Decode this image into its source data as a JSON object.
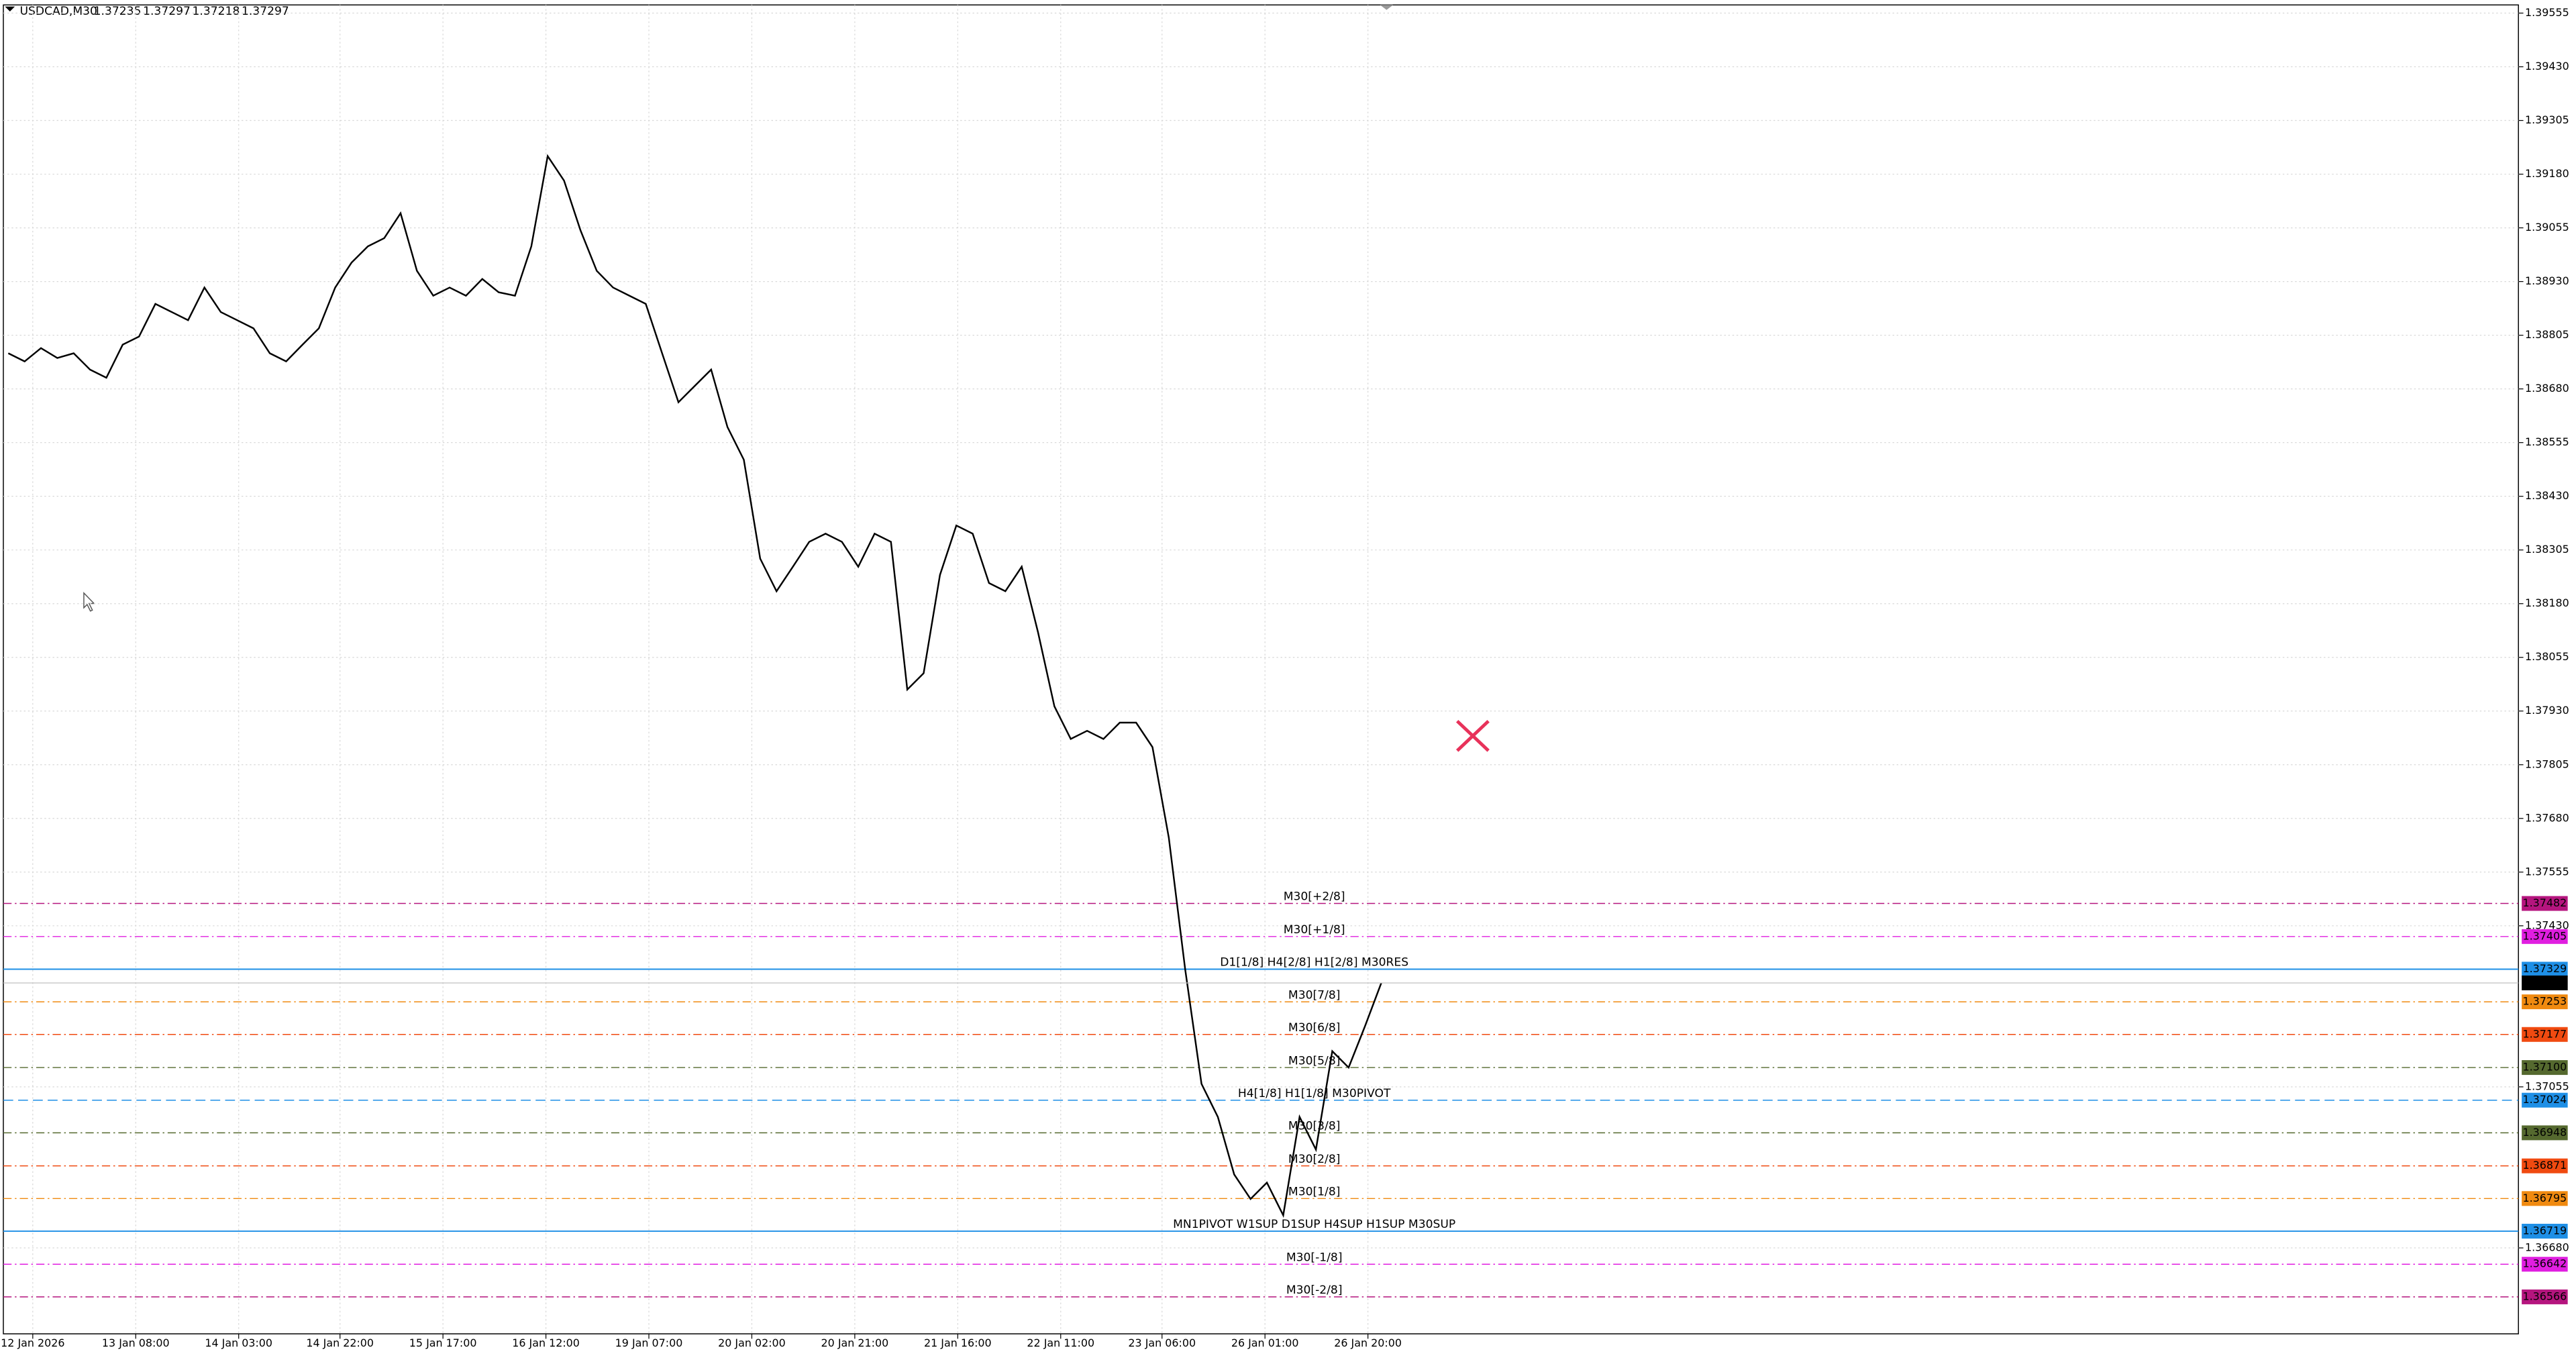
{
  "chart_data": {
    "type": "line",
    "title": "USDCAD,M30",
    "quote": [
      1.37235,
      1.37297,
      1.37218,
      1.37297
    ],
    "color": "#000000",
    "values": [
      1.38763,
      1.38744,
      1.38775,
      1.38752,
      1.38763,
      1.38725,
      1.38706,
      1.38783,
      1.38802,
      1.38878,
      1.38859,
      1.3884,
      1.38916,
      1.38859,
      1.3884,
      1.38821,
      1.38763,
      1.38744,
      1.38783,
      1.38821,
      1.38916,
      1.38974,
      1.39012,
      1.39031,
      1.39089,
      1.38955,
      1.38897,
      1.38916,
      1.38897,
      1.38936,
      1.38905,
      1.38897,
      1.39012,
      1.39222,
      1.39165,
      1.3905,
      1.38955,
      1.38916,
      1.38897,
      1.38878,
      1.38763,
      1.38649,
      1.38687,
      1.38725,
      1.38591,
      1.38515,
      1.38285,
      1.38209,
      1.38266,
      1.38324,
      1.38343,
      1.38324,
      1.38266,
      1.38343,
      1.38324,
      1.3798,
      1.38018,
      1.38247,
      1.38362,
      1.38343,
      1.38228,
      1.38209,
      1.38266,
      1.38113,
      1.37941,
      1.37865,
      1.37884,
      1.37865,
      1.37903,
      1.37903,
      1.37846,
      1.37635,
      1.37329,
      1.37062,
      1.36985,
      1.36851,
      1.36794,
      1.36832,
      1.36756,
      1.36985,
      1.36909,
      1.37138,
      1.371,
      1.37196,
      1.37297
    ],
    "current_price": 1.37297,
    "xlim": [
      -0.3,
      153.6
    ],
    "xticks": [
      {
        "value": 1.5,
        "label": "12 Jan 2026"
      },
      {
        "value": 7.8,
        "label": "13 Jan 08:00"
      },
      {
        "value": 14.1,
        "label": "14 Jan 03:00"
      },
      {
        "value": 20.3,
        "label": "14 Jan 22:00"
      },
      {
        "value": 26.6,
        "label": "15 Jan 17:00"
      },
      {
        "value": 32.9,
        "label": "16 Jan 12:00"
      },
      {
        "value": 39.2,
        "label": "19 Jan 07:00"
      },
      {
        "value": 45.5,
        "label": "20 Jan 02:00"
      },
      {
        "value": 51.8,
        "label": "20 Jan 21:00"
      },
      {
        "value": 58.1,
        "label": "21 Jan 16:00"
      },
      {
        "value": 64.4,
        "label": "22 Jan 11:00"
      },
      {
        "value": 70.6,
        "label": "23 Jan 06:00"
      },
      {
        "value": 76.9,
        "label": "26 Jan 01:00"
      },
      {
        "value": 83.2,
        "label": "26 Jan 20:00"
      }
    ],
    "ylim": [
      1.3648,
      1.39574
    ],
    "yticks": [
      1.39555,
      {
        "value": 1.3943,
        "label": "1.39430"
      },
      1.39305,
      {
        "value": 1.3918,
        "label": "1.39180"
      },
      1.39055,
      {
        "value": 1.3893,
        "label": "1.38930"
      },
      1.38805,
      {
        "value": 1.3868,
        "label": "1.38680"
      },
      1.38555,
      {
        "value": 1.3843,
        "label": "1.38430"
      },
      1.38305,
      {
        "value": 1.3818,
        "label": "1.38180"
      },
      1.38055,
      {
        "value": 1.3793,
        "label": "1.37930"
      },
      1.37805,
      {
        "value": 1.3768,
        "label": "1.37680"
      },
      1.37555,
      {
        "value": 1.3743,
        "label": "1.37430"
      },
      1.37055,
      {
        "value": 1.3668,
        "label": "1.36680"
      }
    ],
    "grid": true,
    "levels": [
      {
        "value": 1.37482,
        "label": "M30[+2/8]",
        "color": "#b5157e",
        "style": "dashdot"
      },
      {
        "value": 1.37405,
        "label": "M30[+1/8]",
        "color": "#e01ee0",
        "style": "dashdot"
      },
      {
        "value": 1.37329,
        "label": "D1[1/8] H4[2/8] H1[2/8] M30RES",
        "color": "#1e8fe6",
        "style": "solid"
      },
      {
        "value": 1.37253,
        "label": "M30[7/8]",
        "color": "#f08a10",
        "style": "dashdot"
      },
      {
        "value": 1.37177,
        "label": "M30[6/8]",
        "color": "#f04a10",
        "style": "dashdot"
      },
      {
        "value": 1.371,
        "value_label": "1.37100",
        "label": "M30[5/8]",
        "color": "#55692f",
        "style": "dashdot"
      },
      {
        "value": 1.37024,
        "label": "H4[1/8] H1[1/8] M30PIVOT",
        "color": "#1e8fe6",
        "style": "dashed"
      },
      {
        "value": 1.36948,
        "label": "M30[3/8]",
        "color": "#55692f",
        "style": "dashdot"
      },
      {
        "value": 1.36871,
        "label": "M30[2/8]",
        "color": "#f04a10",
        "style": "dashdot"
      },
      {
        "value": 1.36795,
        "label": "M30[1/8]",
        "color": "#f08a10",
        "style": "dashdot"
      },
      {
        "value": 1.36719,
        "label": "MN1PIVOT W1SUP D1SUP H4SUP H1SUP M30SUP",
        "color": "#1e8fe6",
        "style": "solid"
      },
      {
        "value": 1.36642,
        "label": "M30[-1/8]",
        "color": "#e01ee0",
        "style": "dashdot"
      },
      {
        "value": 1.36566,
        "label": "M30[-2/8]",
        "color": "#b5157e",
        "style": "dashdot"
      }
    ]
  }
}
